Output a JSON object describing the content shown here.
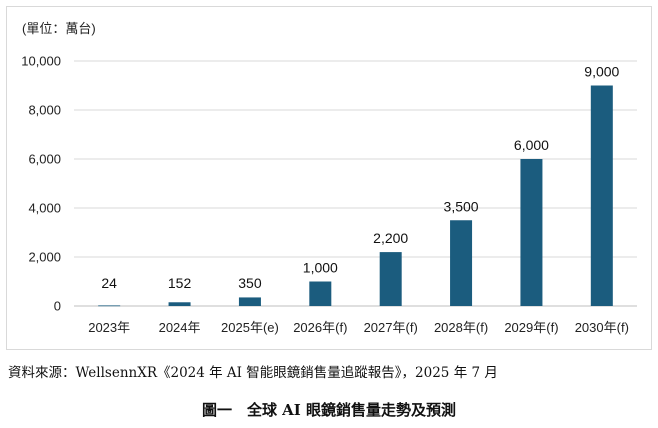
{
  "unit_label": "(單位：萬台)",
  "source_note": "資料來源：WellsennXR《2024 年 AI 智能眼鏡銷售量追蹤報告》，2025 年 7 月",
  "caption": "圖一　全球 AI 眼鏡銷售量走勢及預測",
  "chart_data": {
    "type": "bar",
    "categories": [
      "2023年",
      "2024年",
      "2025年(e)",
      "2026年(f)",
      "2027年(f)",
      "2028年(f)",
      "2029年(f)",
      "2030年(f)"
    ],
    "values": [
      24,
      152,
      350,
      1000,
      2200,
      3500,
      6000,
      9000
    ],
    "data_labels": [
      "24",
      "152",
      "350",
      "1,000",
      "2,200",
      "3,500",
      "6,000",
      "9,000"
    ],
    "y_ticks": [
      0,
      2000,
      4000,
      6000,
      8000,
      10000
    ],
    "y_tick_labels": [
      "0",
      "2,000",
      "4,000",
      "6,000",
      "8,000",
      "10,000"
    ],
    "ylim": [
      0,
      10000
    ],
    "grid": true,
    "bar_color": "#1b5c7e",
    "grid_color": "#d9d9d9"
  }
}
